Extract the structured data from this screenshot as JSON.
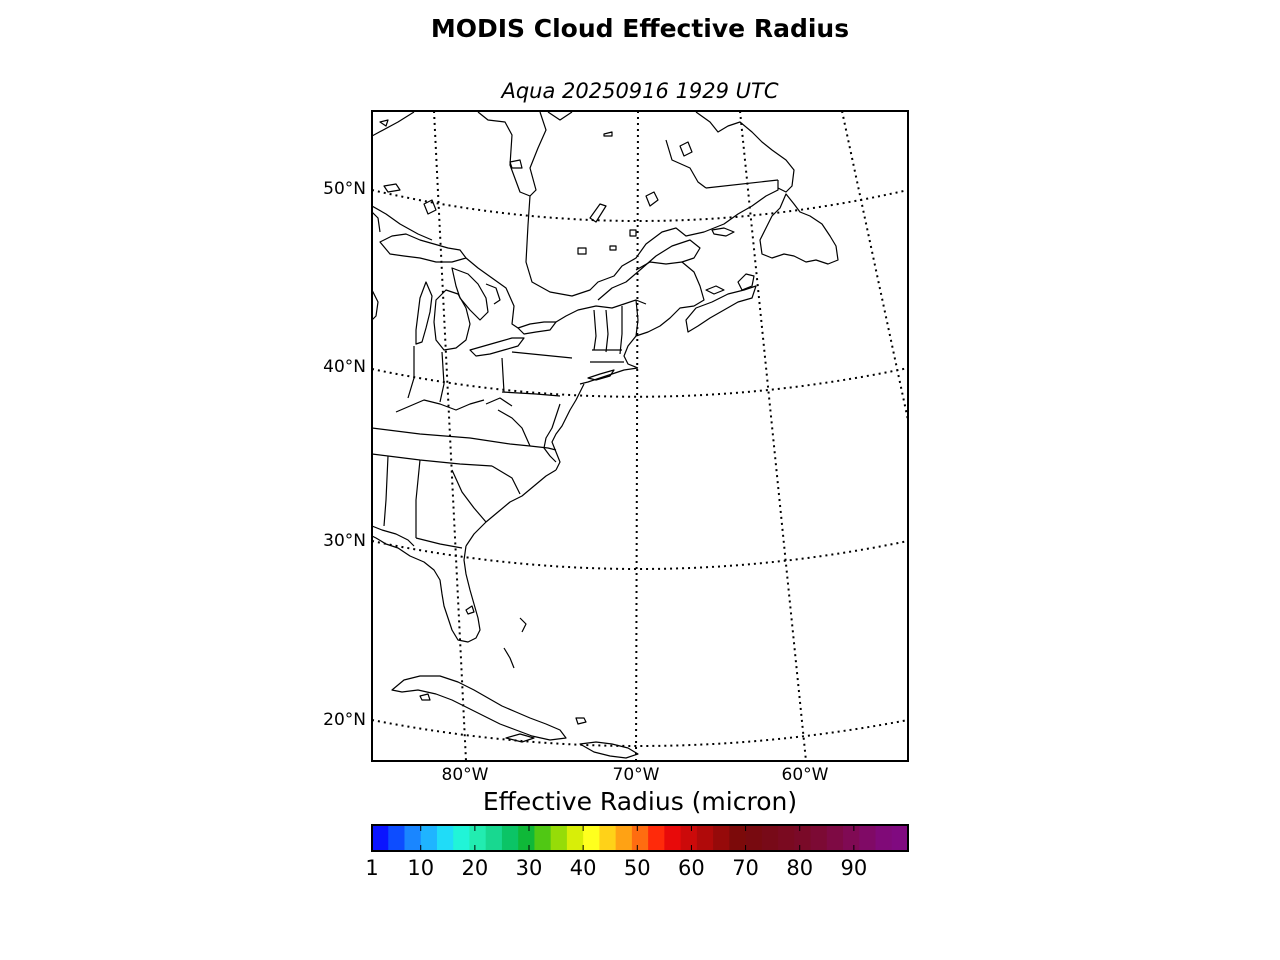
{
  "figure": {
    "title": "MODIS Cloud Effective Radius",
    "subtitle": "Aqua 20250916 1929 UTC"
  },
  "map": {
    "projection": "lambert-conformal",
    "extent": {
      "lon_min": -86,
      "lon_max": -54,
      "lat_min": 18,
      "lat_max": 55
    },
    "latitude_labels": [
      "50°N",
      "40°N",
      "30°N",
      "20°N"
    ],
    "longitude_labels": [
      "80°W",
      "70°W",
      "60°W"
    ],
    "graticule_style": "dotted",
    "coastline_color": "#000000",
    "data_overlay": "none visible"
  },
  "colorbar": {
    "label": "Effective Radius (micron)",
    "min": 1,
    "max": 100,
    "tick_values": [
      1,
      10,
      20,
      30,
      40,
      50,
      60,
      70,
      80,
      90
    ],
    "tick_labels": [
      "1",
      "10",
      "20",
      "30",
      "40",
      "50",
      "60",
      "70",
      "80",
      "90"
    ],
    "colors": [
      "#0a14ff",
      "#0d4dff",
      "#1a86ff",
      "#1fb4ff",
      "#20dcf8",
      "#21f4d8",
      "#22ecb0",
      "#18d890",
      "#0bc466",
      "#0fb838",
      "#50c814",
      "#96dc08",
      "#d8ee08",
      "#ffff1e",
      "#ffd218",
      "#ffa214",
      "#ff6c10",
      "#ff2a0a",
      "#e80a0a",
      "#cc0a0a",
      "#b00a0a",
      "#960a0a",
      "#7c0a0a",
      "#780a10",
      "#780a18",
      "#7a0a20",
      "#7a0a28",
      "#7c0a34",
      "#7e0a44",
      "#800a54",
      "#800a66",
      "#800a78",
      "#800a80"
    ]
  }
}
